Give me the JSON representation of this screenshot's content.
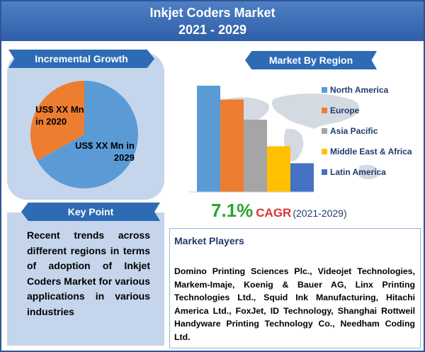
{
  "header": {
    "title_line1": "Inkjet Coders Market",
    "title_line2": "2021 - 2029"
  },
  "incremental_growth": {
    "label": "Incremental Growth",
    "value_2020": "US$ XX Mn\nin 2020",
    "value_2029": "US$ XX Mn in\n2029"
  },
  "key_point": {
    "label": "Key Point",
    "text": "Recent trends across different regions in terms of adoption of Inkjet Coders Market for various applications in various industries"
  },
  "market_by_region": {
    "label": "Market By Region"
  },
  "cagr": {
    "value": "7.1%",
    "word": "CAGR",
    "years": "(2021-2029)"
  },
  "market_players": {
    "title": "Market Players",
    "text": "Domino Printing Sciences Plc., Videojet Technologies, Markem-Imaje, Koenig & Bauer AG, Linx Printing Technologies Ltd., Squid Ink Manufacturing, Hitachi America Ltd., FoxJet, ID Technology, Shanghai Rottweil Handyware Printing Technology Co., Needham Coding Ltd."
  },
  "colors": {
    "header": "#2e5fa8",
    "ribbon": "#2e6bb5",
    "panel": "#c5d5ec",
    "pie_2020": "#ed7d31",
    "pie_2029": "#5b9bd5",
    "cagr_value": "#2aa62a",
    "cagr_word": "#e03030"
  },
  "chart_data": [
    {
      "type": "pie",
      "categories": [
        "2020",
        "2029"
      ],
      "values": [
        33,
        67
      ]
    },
    {
      "type": "bar",
      "categories": [
        "North America",
        "Europe",
        "Asia Pacific",
        "Middle East & Africa",
        "Latin America"
      ],
      "values": [
        100,
        87,
        68,
        43,
        27
      ],
      "colors": [
        "#5b9bd5",
        "#ed7d31",
        "#a5a5a5",
        "#ffc000",
        "#4472c4"
      ],
      "legend": "right",
      "ylim": [
        0,
        100
      ],
      "grid": false
    }
  ]
}
